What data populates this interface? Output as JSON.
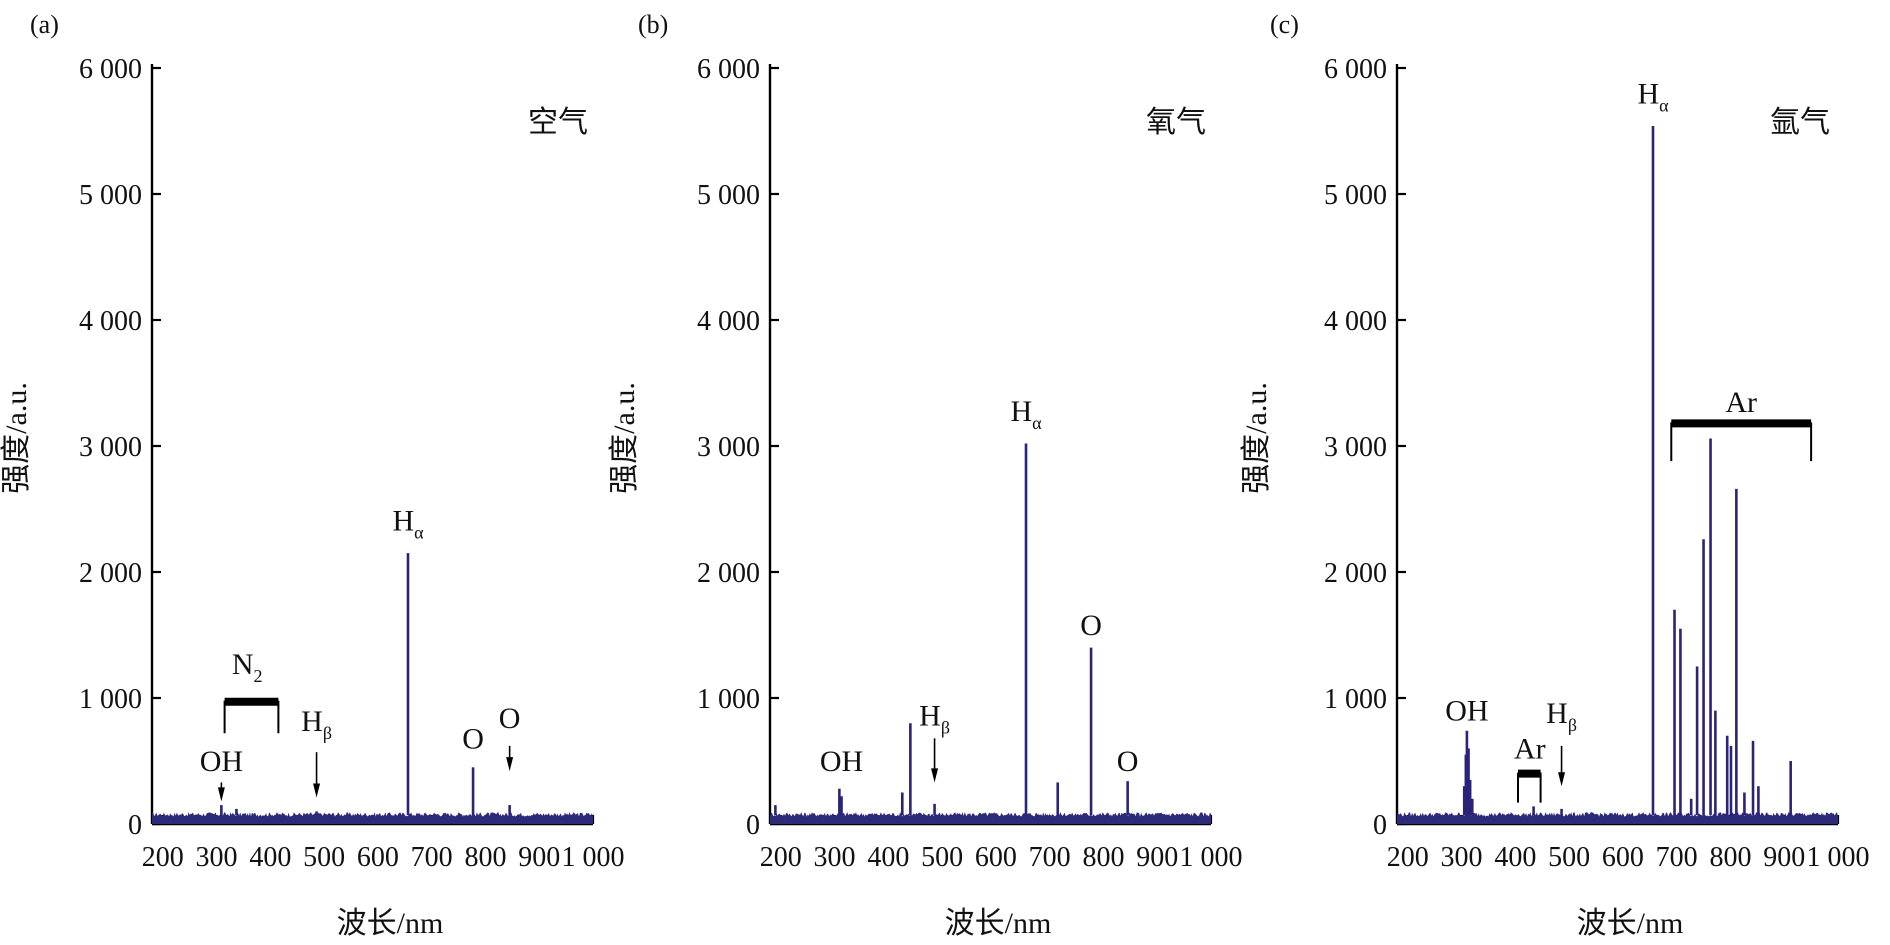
{
  "chart_data": [
    {
      "type": "line",
      "panel_label": "(a)",
      "legend_text": "空气",
      "xlabel": "波长/nm",
      "ylabel": "强度/a.u.",
      "xlim": [
        180,
        1000
      ],
      "ylim": [
        0,
        6000
      ],
      "xticks": [
        200,
        300,
        400,
        500,
        600,
        700,
        800,
        900,
        1000
      ],
      "xtick_labels": [
        "200",
        "300",
        "400",
        "500",
        "600",
        "700",
        "800",
        "900",
        "1 000"
      ],
      "yticks": [
        0,
        1000,
        2000,
        3000,
        4000,
        5000,
        6000
      ],
      "ytick_labels": [
        "0",
        "1 000",
        "2 000",
        "3 000",
        "4 000",
        "5 000",
        "6 000"
      ],
      "baseline": 70,
      "peaks": [
        {
          "x": 309,
          "y": 150
        },
        {
          "x": 337,
          "y": 120
        },
        {
          "x": 486,
          "y": 100
        },
        {
          "x": 656,
          "y": 2150
        },
        {
          "x": 777,
          "y": 450
        },
        {
          "x": 845,
          "y": 150
        }
      ],
      "annotations": [
        {
          "text": "OH",
          "sub": "",
          "x": 309,
          "y": 420
        },
        {
          "text": "N",
          "sub": "2",
          "x": 357,
          "y": 1190
        },
        {
          "text": "H",
          "sub": "β",
          "x": 486,
          "y": 740
        },
        {
          "text": "H",
          "sub": "α",
          "x": 656,
          "y": 2330
        },
        {
          "text": "O",
          "sub": "",
          "x": 777,
          "y": 600
        },
        {
          "text": "O",
          "sub": "",
          "x": 845,
          "y": 760
        }
      ],
      "brackets": [
        {
          "x1": 315,
          "x2": 415,
          "y": 970,
          "height": 250
        }
      ],
      "arrows": [
        {
          "x": 309,
          "y_top": 330,
          "y_bottom": 180
        },
        {
          "x": 486,
          "y_top": 570,
          "y_bottom": 210
        },
        {
          "x": 845,
          "y_top": 620,
          "y_bottom": 420
        }
      ]
    },
    {
      "type": "line",
      "panel_label": "(b)",
      "legend_text": "氧气",
      "xlabel": "波长/nm",
      "ylabel": "强度/a.u.",
      "xlim": [
        180,
        1000
      ],
      "ylim": [
        0,
        6000
      ],
      "xticks": [
        200,
        300,
        400,
        500,
        600,
        700,
        800,
        900,
        1000
      ],
      "xtick_labels": [
        "200",
        "300",
        "400",
        "500",
        "600",
        "700",
        "800",
        "900",
        "1 000"
      ],
      "yticks": [
        0,
        1000,
        2000,
        3000,
        4000,
        5000,
        6000
      ],
      "ytick_labels": [
        "0",
        "1 000",
        "2 000",
        "3 000",
        "4 000",
        "5 000",
        "6 000"
      ],
      "baseline": 70,
      "peaks": [
        {
          "x": 190,
          "y": 150
        },
        {
          "x": 309,
          "y": 280
        },
        {
          "x": 313,
          "y": 220
        },
        {
          "x": 426,
          "y": 250
        },
        {
          "x": 441,
          "y": 800
        },
        {
          "x": 486,
          "y": 160
        },
        {
          "x": 656,
          "y": 3020
        },
        {
          "x": 715,
          "y": 330
        },
        {
          "x": 777,
          "y": 1400
        },
        {
          "x": 845,
          "y": 340
        }
      ],
      "annotations": [
        {
          "text": "OH",
          "sub": "",
          "x": 313,
          "y": 420
        },
        {
          "text": "H",
          "sub": "β",
          "x": 486,
          "y": 780
        },
        {
          "text": "H",
          "sub": "α",
          "x": 656,
          "y": 3200
        },
        {
          "text": "O",
          "sub": "",
          "x": 777,
          "y": 1500
        },
        {
          "text": "O",
          "sub": "",
          "x": 845,
          "y": 420
        }
      ],
      "brackets": [],
      "arrows": [
        {
          "x": 486,
          "y_top": 680,
          "y_bottom": 330
        }
      ]
    },
    {
      "type": "line",
      "panel_label": "(c)",
      "legend_text": "氩气",
      "xlabel": "波长/nm",
      "ylabel": "强度/a.u.",
      "xlim": [
        180,
        1000
      ],
      "ylim": [
        0,
        6000
      ],
      "xticks": [
        200,
        300,
        400,
        500,
        600,
        700,
        800,
        900,
        1000
      ],
      "xtick_labels": [
        "200",
        "300",
        "400",
        "500",
        "600",
        "700",
        "800",
        "900",
        "1 000"
      ],
      "yticks": [
        0,
        1000,
        2000,
        3000,
        4000,
        5000,
        6000
      ],
      "ytick_labels": [
        "0",
        "1 000",
        "2 000",
        "3 000",
        "4 000",
        "5 000",
        "6 000"
      ],
      "baseline": 70,
      "peaks": [
        {
          "x": 305,
          "y": 300
        },
        {
          "x": 308,
          "y": 550
        },
        {
          "x": 310,
          "y": 740
        },
        {
          "x": 313,
          "y": 600
        },
        {
          "x": 316,
          "y": 350
        },
        {
          "x": 320,
          "y": 200
        },
        {
          "x": 434,
          "y": 140
        },
        {
          "x": 486,
          "y": 120
        },
        {
          "x": 656,
          "y": 5540
        },
        {
          "x": 696,
          "y": 1700
        },
        {
          "x": 707,
          "y": 1550
        },
        {
          "x": 727,
          "y": 200
        },
        {
          "x": 738,
          "y": 1250
        },
        {
          "x": 750,
          "y": 2260
        },
        {
          "x": 763,
          "y": 3060
        },
        {
          "x": 772,
          "y": 900
        },
        {
          "x": 794,
          "y": 700
        },
        {
          "x": 801,
          "y": 620
        },
        {
          "x": 811,
          "y": 2660
        },
        {
          "x": 826,
          "y": 250
        },
        {
          "x": 842,
          "y": 660
        },
        {
          "x": 852,
          "y": 300
        },
        {
          "x": 912,
          "y": 500
        }
      ],
      "annotations": [
        {
          "text": "OH",
          "sub": "",
          "x": 310,
          "y": 820
        },
        {
          "text": "Ar",
          "sub": "",
          "x": 427,
          "y": 520
        },
        {
          "text": "H",
          "sub": "β",
          "x": 486,
          "y": 800
        },
        {
          "text": "H",
          "sub": "α",
          "x": 656,
          "y": 5720
        },
        {
          "text": "Ar",
          "sub": "",
          "x": 820,
          "y": 3270
        }
      ],
      "brackets": [
        {
          "x1": 405,
          "x2": 447,
          "y": 400,
          "height": 230
        },
        {
          "x1": 690,
          "x2": 950,
          "y": 3180,
          "height": 300
        }
      ],
      "arrows": [
        {
          "x": 486,
          "y_top": 620,
          "y_bottom": 300
        }
      ]
    }
  ]
}
